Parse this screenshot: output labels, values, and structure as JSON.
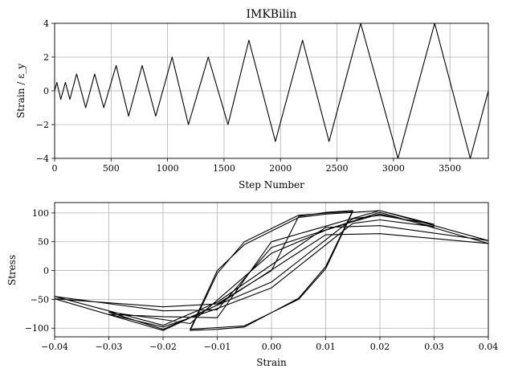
{
  "chart_data": [
    {
      "type": "line",
      "title": "IMKBilin",
      "xlabel": "Step Number",
      "ylabel": "Strain / ε_y",
      "xlim": [
        0,
        3840
      ],
      "ylim": [
        -4,
        4
      ],
      "xticks": [
        0,
        500,
        1000,
        1500,
        2000,
        2500,
        3000,
        3500
      ],
      "yticks": [
        -4,
        -2,
        0,
        2,
        4
      ],
      "xtick_labels": [
        "0",
        "500",
        "1000",
        "1500",
        "2000",
        "2500",
        "3000",
        "3500"
      ],
      "ytick_labels": [
        "−4",
        "−2",
        "0",
        "2",
        "4"
      ],
      "grid": true,
      "series": [
        {
          "x": [
            0,
            20,
            55,
            95,
            135,
            195,
            275,
            355,
            435,
            545,
            655,
            775,
            895,
            1040,
            1185,
            1360,
            1535,
            1720,
            1955,
            2195,
            2430,
            2710,
            3040,
            3365,
            3680,
            3840
          ],
          "y": [
            0,
            0.5,
            -0.5,
            0.5,
            -0.5,
            1.0,
            -1.0,
            1.0,
            -1.0,
            1.5,
            -1.5,
            1.5,
            -1.5,
            2.0,
            -2.0,
            2.0,
            -2.0,
            3.0,
            -3.0,
            3.0,
            -3.0,
            4.0,
            -4.0,
            4.0,
            -4.0,
            0
          ]
        }
      ]
    },
    {
      "type": "line",
      "title": "",
      "xlabel": "Strain",
      "ylabel": "Stress",
      "xlim": [
        -0.04,
        0.04
      ],
      "ylim": [
        -115,
        118
      ],
      "xticks": [
        -0.04,
        -0.03,
        -0.02,
        -0.01,
        0.0,
        0.01,
        0.02,
        0.03,
        0.04
      ],
      "yticks": [
        -100,
        -50,
        0,
        50,
        100
      ],
      "xtick_labels": [
        "−0.04",
        "−0.03",
        "−0.02",
        "−0.01",
        "0.00",
        "0.01",
        "0.02",
        "0.03",
        "0.04"
      ],
      "ytick_labels": [
        "−100",
        "−50",
        "0",
        "50",
        "100"
      ],
      "grid": true,
      "series": [
        {
          "x": [
            0,
            0.005,
            0.008,
            0.01,
            0.015,
            0.01,
            0.005,
            -0.005,
            -0.01,
            -0.015,
            -0.01,
            -0.005,
            0.005,
            0.008,
            0.01,
            0.015,
            0.01,
            0.005,
            -0.005,
            -0.01,
            -0.015,
            -0.01,
            -0.005,
            0.005,
            0.01,
            0.015,
            0.02,
            0.03,
            0.02,
            0.015,
            0.0,
            -0.01,
            -0.02,
            -0.03,
            -0.02,
            -0.015,
            0.0,
            0.01,
            0.015,
            0.02,
            0.03,
            0.02,
            0.015,
            0.0,
            -0.01,
            -0.02,
            -0.03,
            -0.02,
            -0.01,
            0.0,
            0.02,
            0.04,
            0.02,
            0.01,
            -0.01,
            -0.02,
            -0.04,
            -0.02,
            -0.01,
            0.0,
            0.02,
            0.04,
            0.02,
            0.01,
            -0.01,
            -0.02,
            -0.04,
            -0.02,
            -0.01,
            0.0
          ],
          "y": [
            0,
            94,
            98,
            101,
            104,
            7,
            -48,
            -98,
            -102,
            -104,
            -5,
            50,
            96,
            98,
            100,
            103,
            3,
            -50,
            -96,
            -99,
            -102,
            0,
            45,
            92,
            98,
            101,
            104,
            80,
            96,
            90,
            -20,
            -60,
            -102,
            -72,
            -85,
            -92,
            30,
            70,
            85,
            98,
            76,
            88,
            82,
            -30,
            -66,
            -98,
            -76,
            -80,
            -82,
            50,
            104,
            52,
            78,
            75,
            -55,
            -95,
            -45,
            -70,
            -68,
            40,
            101,
            47,
            64,
            62,
            -60,
            -104,
            -49,
            -63,
            -58,
            0
          ]
        }
      ]
    }
  ]
}
